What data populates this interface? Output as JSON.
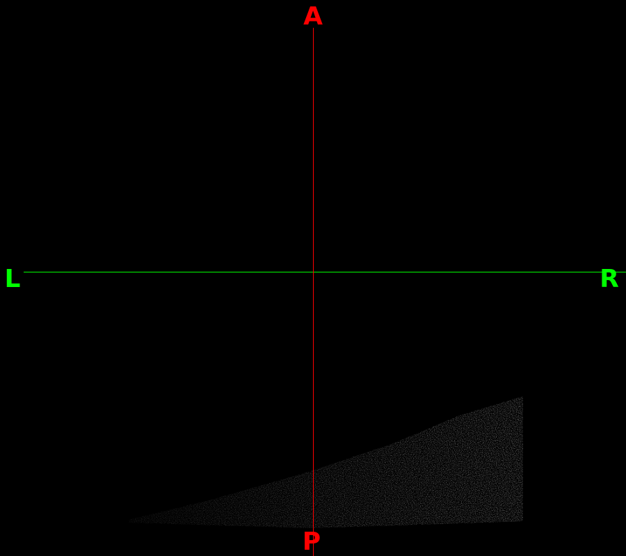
{
  "viewer": {
    "background_color": "#000000",
    "crosshair": {
      "vertical_color": "#ff0000",
      "horizontal_color": "#00ff00"
    },
    "orientation": {
      "top": {
        "label": "A",
        "color": "#ff0000"
      },
      "bottom": {
        "label": "P",
        "color": "#ff0000"
      },
      "left": {
        "label": "L",
        "color": "#00ff00"
      },
      "right": {
        "label": "R",
        "color": "#00ff00"
      }
    }
  }
}
